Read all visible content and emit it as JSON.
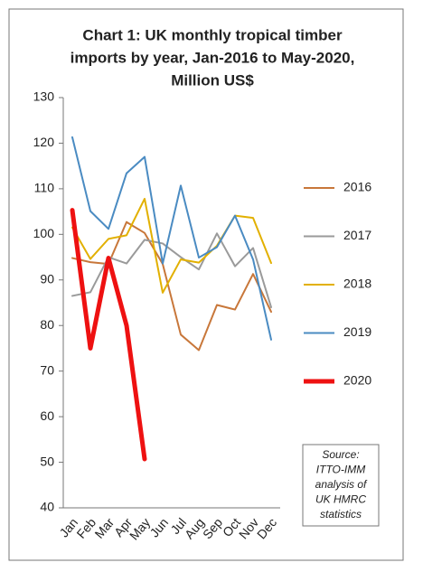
{
  "chart_data": {
    "type": "line",
    "title": [
      "Chart 1: UK monthly tropical timber",
      "imports by year, Jan-2016 to May-2020,",
      "Million US$"
    ],
    "categories": [
      "Jan",
      "Feb",
      "Mar",
      "Apr",
      "May",
      "Jun",
      "Jul",
      "Aug",
      "Sep",
      "Oct",
      "Nov",
      "Dec"
    ],
    "series": [
      {
        "name": "2016",
        "color": "#c8773a",
        "linewidth": 2,
        "values": [
          94.8,
          93.9,
          93.5,
          102.7,
          100.3,
          93.5,
          78,
          74.6,
          84.5,
          83.5,
          91.3,
          83
        ]
      },
      {
        "name": "2017",
        "color": "#9a9a9a",
        "linewidth": 2,
        "values": [
          86.5,
          87.3,
          95,
          93.6,
          98.8,
          98,
          95,
          92.3,
          100.2,
          93,
          97,
          84
        ]
      },
      {
        "name": "2018",
        "color": "#e2b000",
        "linewidth": 2,
        "values": [
          101.5,
          94.6,
          99,
          99.8,
          107.8,
          87.2,
          94.5,
          93.8,
          97.5,
          104.1,
          103.6,
          93.7
        ]
      },
      {
        "name": "2019",
        "color": "#4a8bc2",
        "linewidth": 2,
        "values": [
          121.3,
          105.1,
          101.2,
          113.4,
          117,
          93.6,
          110.7,
          94.9,
          97.2,
          104.1,
          94.5,
          76.9
        ]
      },
      {
        "name": "2020",
        "color": "#ee1111",
        "linewidth": 5,
        "values": [
          105.3,
          75,
          94.8,
          80,
          50.7,
          null,
          null,
          null,
          null,
          null,
          null,
          null
        ]
      }
    ],
    "ylim": [
      40,
      130
    ],
    "yticks": [
      40,
      50,
      60,
      70,
      80,
      90,
      100,
      110,
      120,
      130
    ],
    "legend": "right",
    "source": [
      "Source:",
      "ITTO-IMM",
      "analysis of",
      "UK HMRC",
      "statistics"
    ]
  }
}
